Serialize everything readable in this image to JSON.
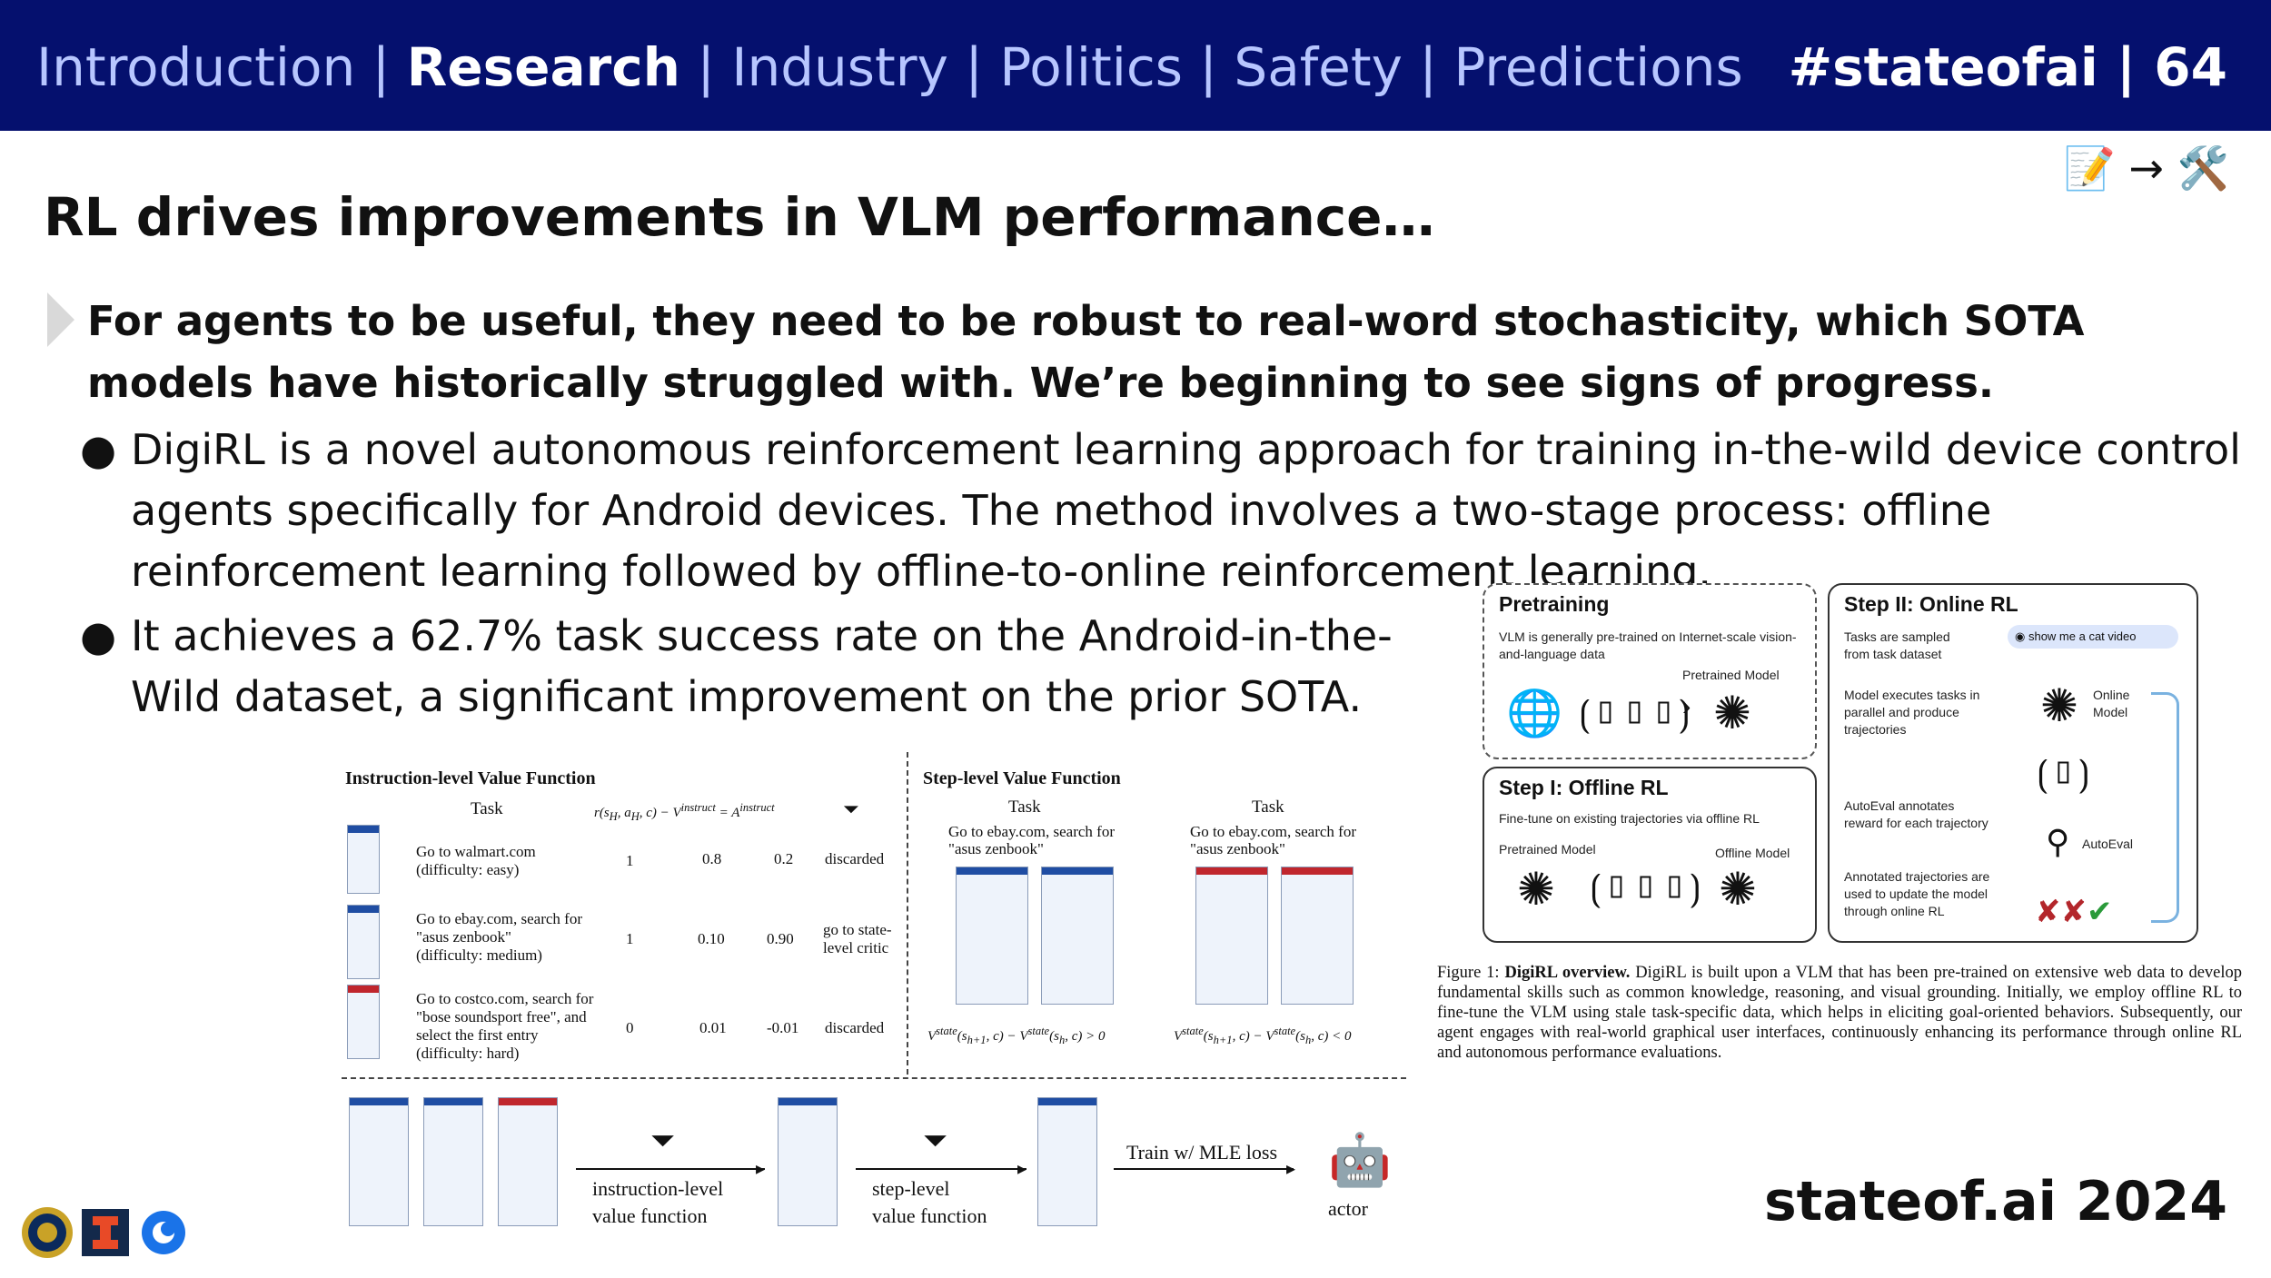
{
  "nav": {
    "items": [
      "Introduction",
      "Research",
      "Industry",
      "Politics",
      "Safety",
      "Predictions"
    ],
    "active": "Research",
    "hashtag_page": "#stateofai | 64"
  },
  "icons": {
    "memo": "📝",
    "arrow": "→",
    "tools": "🛠️"
  },
  "slide": {
    "title": "RL drives improvements in VLM performance…",
    "lead": "For agents to be useful, they need to be robust to real-word stochasticity, which SOTA models have historically struggled with. We’re beginning to see signs of progress.",
    "bullets": [
      "DigiRL is a novel autonomous reinforcement learning approach for training in-the-wild device control agents specifically for Android devices. The method involves a two-stage process: offline reinforcement learning followed by offline-to-online reinforcement learning.",
      "It achieves a 62.7% task success rate on the Android-in-the-Wild dataset, a significant improvement on the prior SOTA."
    ],
    "footer": "stateof.ai 2024"
  },
  "value_figure": {
    "left_title": "Instruction-level Value Function",
    "right_title": "Step-level Value Function",
    "col_task": "Task",
    "rows": [
      {
        "task": [
          "Go to walmart.com",
          "(difficulty: easy)"
        ],
        "r": "1",
        "v": "0.8",
        "a": "0.2",
        "result": [
          "discarded"
        ]
      },
      {
        "task": [
          "Go to ebay.com, search  for",
          "\"asus zenbook\"",
          "(difficulty: medium)"
        ],
        "r": "1",
        "v": "0.10",
        "a": "0.90",
        "result": [
          "go to state-",
          "level critic"
        ]
      },
      {
        "task": [
          "Go to costco.com, search for",
          "\"bose soundsport free\", and",
          "select the first entry",
          "(difficulty: hard)"
        ],
        "r": "0",
        "v": "0.01",
        "a": "-0.01",
        "result": [
          "discarded"
        ]
      }
    ],
    "step_task_1": [
      "Go to ebay.com, search  for",
      "\"asus zenbook\""
    ],
    "step_task_2": [
      "Go to ebay.com, search  for",
      "\"asus zenbook\""
    ],
    "pipeline": {
      "label1": [
        "instruction-level",
        "value function"
      ],
      "label2": [
        "step-level",
        "value function"
      ],
      "label3": "Train w/ MLE loss",
      "label4": "actor"
    }
  },
  "overview": {
    "pretraining": {
      "title": "Pretraining",
      "desc": "VLM is generally pre-trained on Internet-scale vision-and-language data",
      "model": "Pretrained Model"
    },
    "offline": {
      "title": "Step I: Offline RL",
      "desc": "Fine-tune on existing trajectories via offline RL",
      "model_in": "Pretrained Model",
      "model_out": "Offline Model"
    },
    "online": {
      "title": "Step II: Online RL",
      "s1": "Tasks are sampled from task dataset",
      "chip": "show me a cat video",
      "s2": "Model executes tasks in parallel and produce trajectories",
      "model": "Online Model",
      "s3": "AutoEval annotates reward for each trajectory",
      "autoeval": "AutoEval",
      "s4": "Annotated trajectories are used to update the model through online RL"
    }
  },
  "caption": {
    "label": "Figure 1:",
    "bold": "DigiRL overview.",
    "text": "DigiRL is built upon a VLM that has been pre-trained on extensive web data to develop fundamental skills such as common knowledge, reasoning, and visual grounding. Initially, we employ offline RL to fine-tune the VLM using stale task-specific data, which helps in eliciting goal-oriented behaviors. Subsequently, our agent engages with real-world graphical user interfaces, continuously enhancing its performance through online RL and autonomous performance evaluations."
  },
  "colors": {
    "topbar": "#05106e",
    "nav_inactive": "#b7c6ff",
    "nav_active": "#ffffff"
  }
}
